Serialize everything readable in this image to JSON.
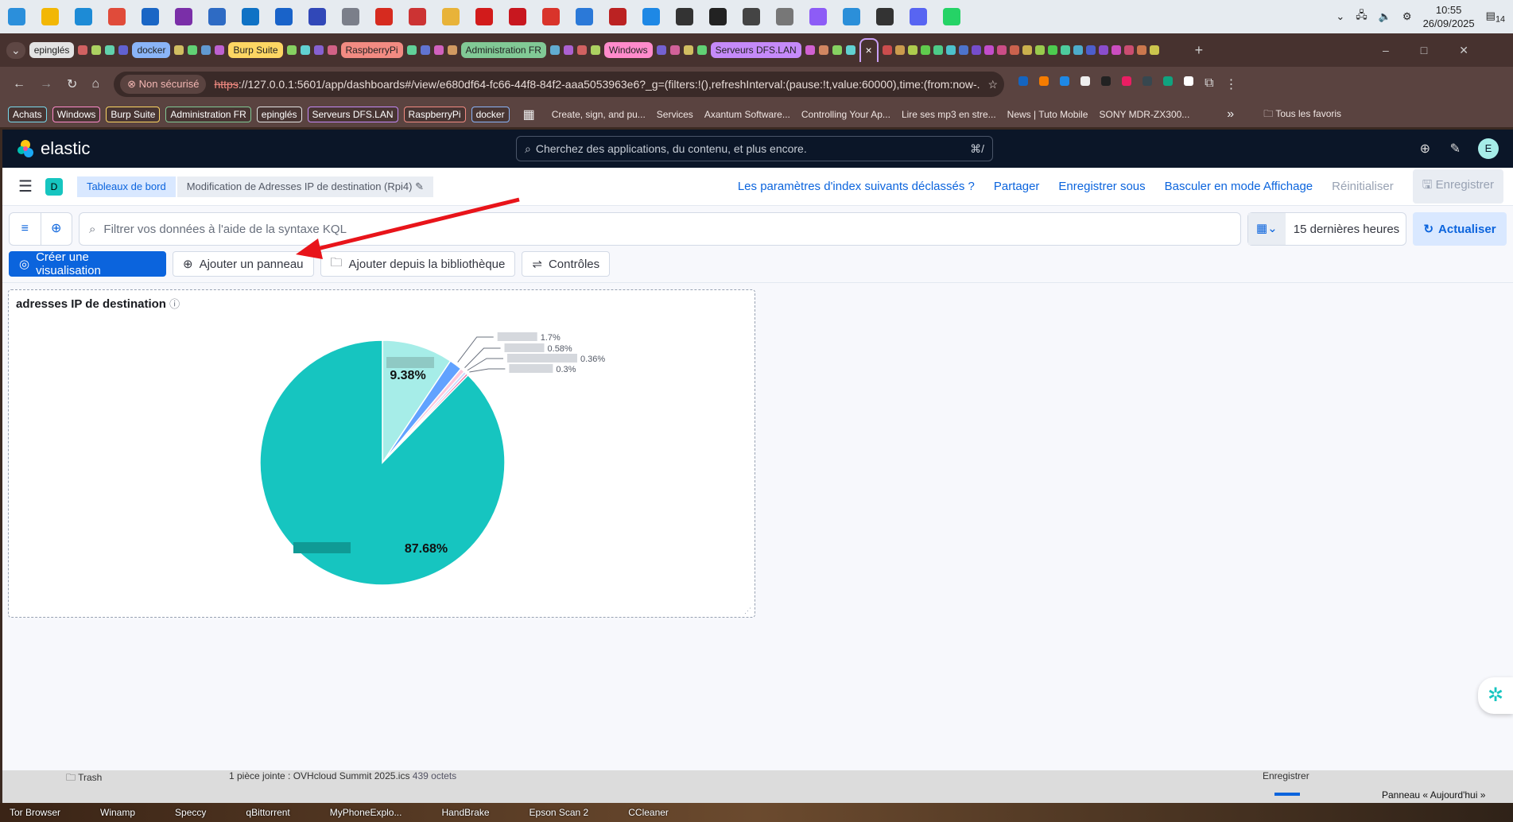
{
  "system": {
    "time": "10:55",
    "date": "26/09/2025",
    "notifications": "14",
    "taskbar_icons": [
      "#2b8fdb",
      "#f2b705",
      "#1d8bd6",
      "#e04b3a",
      "#1a66c5",
      "#7a2fa8",
      "#2e6bc4",
      "#0f72c5",
      "#1963c9",
      "#3148b8",
      "#7b7f8a",
      "#d62b1f",
      "#c33",
      "#e8b339",
      "#d21b1b",
      "#c8171f",
      "#d9342b",
      "#2b79d8",
      "#bb2222",
      "#1e88e5",
      "#333",
      "#222",
      "#444",
      "#777",
      "#8d5cf6",
      "#2b8fd9",
      "#333",
      "#5865f2",
      "#25d366"
    ]
  },
  "browser": {
    "tab_groups": [
      {
        "label": "epinglés",
        "color": "#e3e3e3"
      },
      {
        "label": "docker",
        "color": "#8ab4f8"
      },
      {
        "label": "Burp Suite",
        "color": "#fdd663"
      },
      {
        "label": "RaspberryPi",
        "color": "#f28b82"
      },
      {
        "label": "Administration FR",
        "color": "#81c995"
      },
      {
        "label": "Windows",
        "color": "#ff8bcb"
      },
      {
        "label": "Serveurs DFS.LAN",
        "color": "#c58af9"
      }
    ],
    "close_tab": "×",
    "new_tab": "+",
    "security": "Non sécurisé",
    "url_scheme": "https",
    "url_rest": "://127.0.0.1:5601/app/dashboards#/view/e680df64-fc66-44f8-84f2-aaa5053963e6?_g=(filters:!(),refreshInterval:(pause:!t,value:60000),time:(from:now-...",
    "bookmark_groups": [
      {
        "label": "Achats",
        "color": "#78d9ec"
      },
      {
        "label": "Windows",
        "color": "#ff8bcb"
      },
      {
        "label": "Burp Suite",
        "color": "#fdd663"
      },
      {
        "label": "Administration FR",
        "color": "#81c995"
      },
      {
        "label": "epinglés",
        "color": "#e3e3e3"
      },
      {
        "label": "Serveurs DFS.LAN",
        "color": "#c58af9"
      },
      {
        "label": "RaspberryPi",
        "color": "#f28b82"
      },
      {
        "label": "docker",
        "color": "#8ab4f8"
      }
    ],
    "bookmarks": [
      "Create, sign, and pu...",
      "Services",
      "Axantum Software...",
      "Controlling Your Ap...",
      "Lire ses mp3 en stre...",
      "News | Tuto Mobile",
      "SONY MDR-ZX300..."
    ],
    "more": "»",
    "all_bookmarks": "Tous les favoris"
  },
  "elastic": {
    "brand": "elastic",
    "search_placeholder": "Cherchez des applications, du contenu, et plus encore.",
    "search_shortcut": "⌘/",
    "avatar": "E",
    "space": "D",
    "breadcrumbs": [
      "Tableaux de bord",
      "Modification de Adresses IP de destination (Rpi4)"
    ],
    "actions": {
      "index_warning": "Les paramètres d'index suivants déclassés ?",
      "share": "Partager",
      "save_as": "Enregistrer sous",
      "view_mode": "Basculer en mode Affichage",
      "reset": "Réinitialiser",
      "save": "Enregistrer"
    },
    "kql_placeholder": "Filtrer vos données à l'aide de la syntaxe KQL",
    "time_range": "15 dernières heures",
    "refresh": "Actualiser",
    "toolbar": {
      "create": "Créer une visualisation",
      "add_panel": "Ajouter un panneau",
      "add_library": "Ajouter depuis la bibliothèque",
      "controls": "Contrôles"
    },
    "accent": "#0b64dd"
  },
  "panel": {
    "title": "adresses IP de destination"
  },
  "chart_data": {
    "type": "pie",
    "values": [
      9.38,
      1.7,
      0.58,
      0.36,
      0.3,
      87.68
    ],
    "labels": [
      "9.38%",
      "1.7%",
      "0.58%",
      "0.36%",
      "0.3%",
      "87.68%"
    ],
    "colors": [
      "#a6ede8",
      "#61a2ff",
      "#ffc7db",
      "#c4d8ff",
      "#ee72a6",
      "#16c5c0"
    ]
  },
  "background_window": {
    "folder": "Trash",
    "attachment": "1 pièce jointe : OVHcloud Summit 2025.ics",
    "size": "439 octets",
    "save": "Enregistrer",
    "today": "Panneau « Aujourd'hui »"
  },
  "desktop_icons": [
    "Tor Browser",
    "Winamp",
    "Speccy",
    "qBittorrent",
    "MyPhoneExplo...",
    "HandBrake",
    "Epson Scan 2",
    "CCleaner"
  ]
}
